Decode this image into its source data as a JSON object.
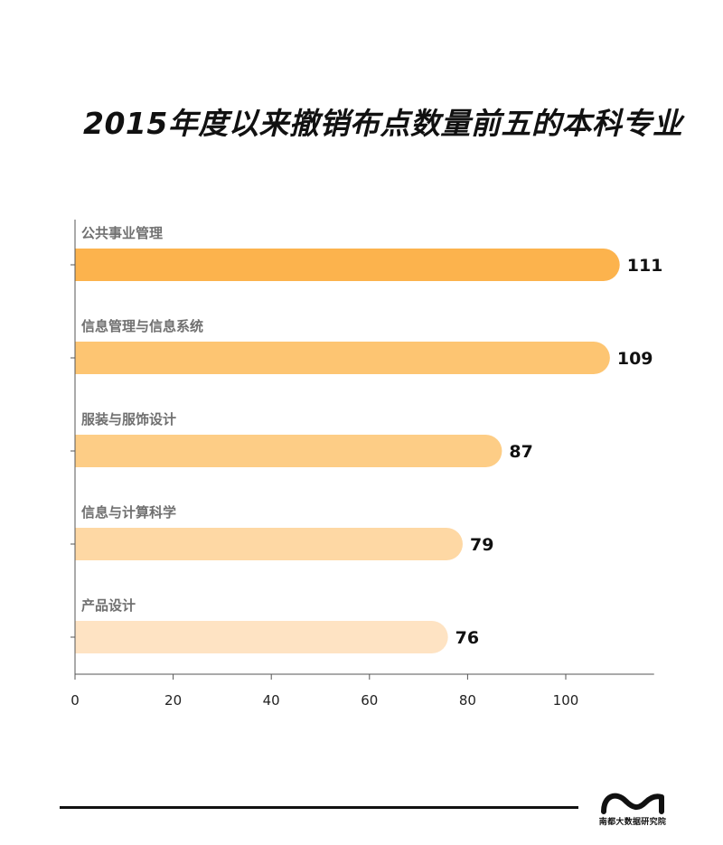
{
  "title": "2015年度以来撤销布点数量前五的本科专业",
  "colors": {
    "bars": [
      "#fcb34d",
      "#fdc572",
      "#fdcd86",
      "#fed8a4",
      "#fee3c3"
    ],
    "axis": "#555555",
    "category_label": "#707070",
    "value_label": "#111111"
  },
  "chart_data": {
    "type": "bar",
    "orientation": "horizontal",
    "title": "2015年度以来撤销布点数量前五的本科专业",
    "xlabel": "",
    "ylabel": "",
    "categories": [
      "公共事业管理",
      "信息管理与信息系统",
      "服装与服饰设计",
      "信息与计算科学",
      "产品设计"
    ],
    "values": [
      111,
      109,
      87,
      79,
      76
    ],
    "xlim": [
      0,
      118
    ],
    "x_ticks": [
      0,
      20,
      40,
      60,
      80,
      100
    ],
    "grid": false,
    "legend": "none"
  },
  "footer": {
    "org": "南都大数据研究院",
    "logo_icon": "wave-logo-icon"
  }
}
